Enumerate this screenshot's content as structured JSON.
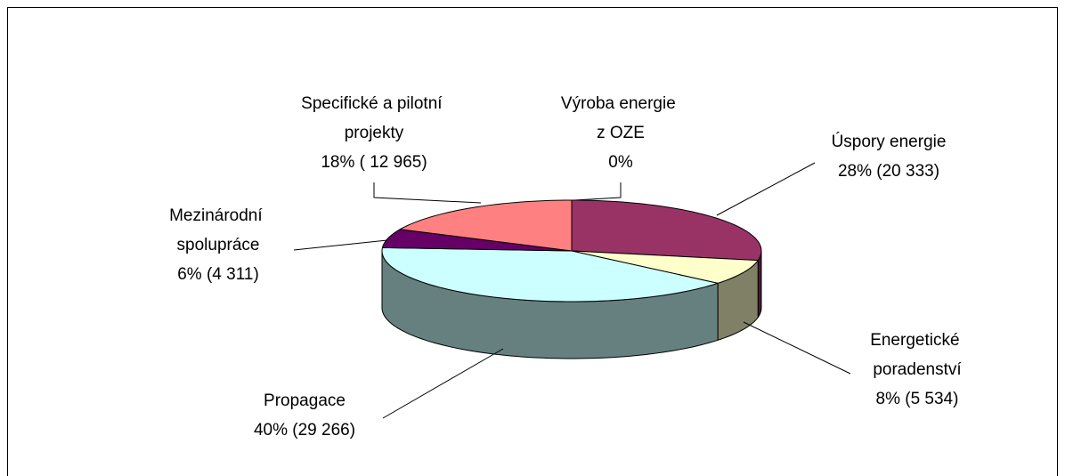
{
  "chart_data": {
    "type": "pie",
    "categories": [
      "Úspory energie",
      "Energetické poradenství",
      "Propagace",
      "Mezinárodní spolupráce",
      "Specifické a pilotní projekty",
      "Výroba energie z OZE"
    ],
    "values": [
      28,
      8,
      40,
      6,
      18,
      0
    ],
    "value_labels": [
      "28% (20 333)",
      "8% (5 534)",
      "40% (29 266)",
      "6% (4 311)",
      "18% ( 12 965)",
      "0%"
    ],
    "colors": [
      "#993366",
      "#ffffcc",
      "#ccffff",
      "#660066",
      "#ff8080",
      "#9999ff"
    ]
  }
}
